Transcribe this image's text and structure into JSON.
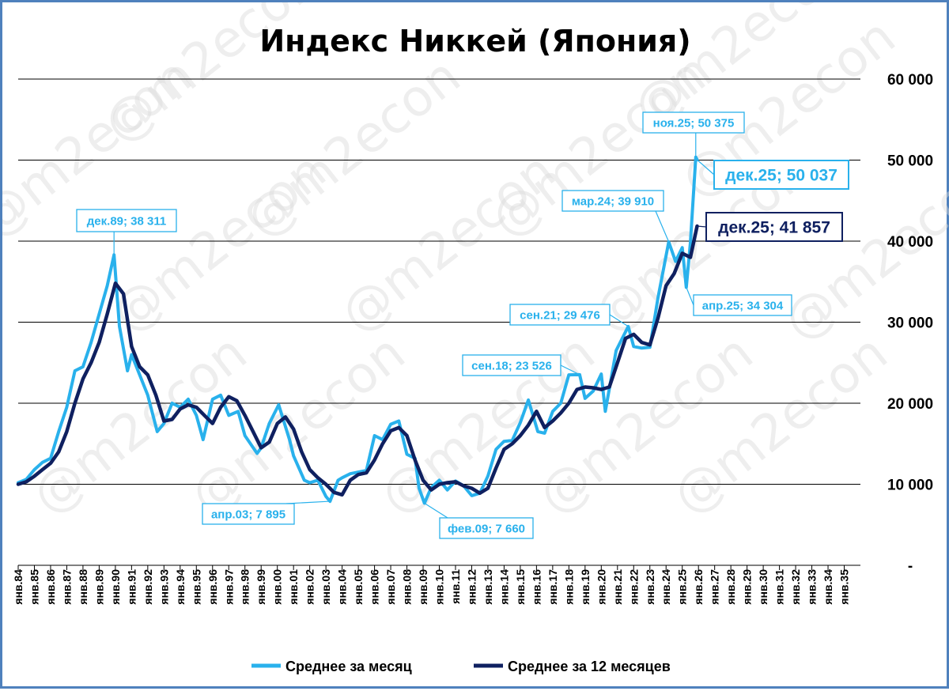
{
  "chart_data": {
    "type": "line",
    "title": "Индекс Никкей (Япония)",
    "watermark": "@m2econ",
    "colors": {
      "monthly": "#29b1ec",
      "avg12": "#0f2060",
      "grid": "#000000",
      "frame": "#4f81bd"
    },
    "ylim": [
      0,
      60000
    ],
    "y_ticks": [
      {
        "value": 0,
        "label": "-"
      },
      {
        "value": 10000,
        "label": "10 000"
      },
      {
        "value": 20000,
        "label": "20 000"
      },
      {
        "value": 30000,
        "label": "30 000"
      },
      {
        "value": 40000,
        "label": "40 000"
      },
      {
        "value": 50000,
        "label": "50 000"
      },
      {
        "value": 60000,
        "label": "60 000"
      }
    ],
    "grid": "horizontal",
    "x_tick_labels": [
      "янв.84",
      "янв.85",
      "янв.86",
      "янв.87",
      "янв.88",
      "янв.89",
      "янв.90",
      "янв.91",
      "янв.92",
      "янв.93",
      "янв.94",
      "янв.95",
      "янв.96",
      "янв.97",
      "янв.98",
      "янв.99",
      "янв.00",
      "янв.01",
      "янв.02",
      "янв.03",
      "янв.04",
      "янв.05",
      "янв.06",
      "янв.07",
      "янв.08",
      "янв.09",
      "янв.10",
      "янв.11",
      "янв.12",
      "янв.13",
      "янв.14",
      "янв.15",
      "янв.16",
      "янв.17",
      "янв.18",
      "янв.19",
      "янв.20",
      "янв.21",
      "янв.22",
      "янв.23",
      "янв.24",
      "янв.25",
      "янв.26",
      "янв.27",
      "янв.28",
      "янв.29",
      "янв.30",
      "янв.31",
      "янв.32",
      "янв.33",
      "янв.34",
      "янв.35"
    ],
    "x_range": [
      "янв.84",
      "дек.35"
    ],
    "legend_position": "bottom",
    "series": [
      {
        "name": "Среднее за месяц",
        "x": [
          "янв.84",
          "июл.84",
          "янв.85",
          "июл.85",
          "янв.86",
          "июл.86",
          "янв.87",
          "июл.87",
          "янв.88",
          "июл.88",
          "янв.89",
          "июл.89",
          "дек.89",
          "апр.90",
          "окт.90",
          "янв.91",
          "июл.91",
          "янв.92",
          "авг.92",
          "янв.93",
          "июл.93",
          "янв.94",
          "июл.94",
          "янв.95",
          "июн.95",
          "янв.96",
          "июл.96",
          "янв.97",
          "авг.97",
          "янв.98",
          "окт.98",
          "янв.99",
          "июл.99",
          "фев.00",
          "окт.00",
          "янв.01",
          "сен.01",
          "янв.02",
          "июл.02",
          "янв.03",
          "апр.03",
          "окт.03",
          "янв.04",
          "июл.04",
          "янв.05",
          "июл.05",
          "янв.06",
          "июл.06",
          "янв.07",
          "июл.07",
          "янв.08",
          "июл.08",
          "окт.08",
          "фев.09",
          "июл.09",
          "янв.10",
          "июл.10",
          "янв.11",
          "июл.11",
          "янв.12",
          "июл.12",
          "янв.13",
          "июл.13",
          "янв.14",
          "июл.14",
          "янв.15",
          "июл.15",
          "фев.16",
          "июл.16",
          "янв.17",
          "июл.17",
          "янв.18",
          "сен.18",
          "янв.19",
          "июл.19",
          "янв.20",
          "апр.20",
          "дек.20",
          "сен.21",
          "янв.22",
          "июл.22",
          "янв.23",
          "июл.23",
          "мар.24",
          "авг.24",
          "янв.25",
          "апр.25",
          "июл.25",
          "ноя.25",
          "дек.25"
        ],
        "values": [
          10200,
          10600,
          11800,
          12700,
          13200,
          16500,
          19500,
          24000,
          24500,
          27500,
          31000,
          34500,
          38311,
          29500,
          24000,
          26000,
          23500,
          21000,
          16500,
          17500,
          20000,
          19500,
          20500,
          18500,
          15500,
          20500,
          21000,
          18500,
          19000,
          16000,
          13800,
          14500,
          17500,
          19800,
          15500,
          13500,
          10500,
          10200,
          10500,
          8500,
          7895,
          10500,
          10800,
          11300,
          11500,
          11700,
          16000,
          15500,
          17400,
          17800,
          13700,
          13200,
          9500,
          7660,
          9600,
          10500,
          9300,
          10400,
          9800,
          8600,
          8900,
          11000,
          14300,
          15300,
          15400,
          17600,
          20400,
          16500,
          16300,
          19000,
          20000,
          23500,
          23526,
          20600,
          21500,
          23600,
          19000,
          26500,
          29476,
          27000,
          26800,
          26900,
          33000,
          39910,
          37500,
          39200,
          34304,
          39800,
          50375,
          50037
        ]
      },
      {
        "name": "Среднее за 12 месяцев",
        "x": [
          "янв.84",
          "июл.84",
          "янв.85",
          "июл.85",
          "янв.86",
          "июл.86",
          "янв.87",
          "июл.87",
          "янв.88",
          "июл.88",
          "янв.89",
          "июл.89",
          "янв.90",
          "июл.90",
          "янв.91",
          "июл.91",
          "янв.92",
          "июл.92",
          "янв.93",
          "июл.93",
          "янв.94",
          "июл.94",
          "янв.95",
          "июл.95",
          "янв.96",
          "июл.96",
          "янв.97",
          "июл.97",
          "янв.98",
          "июл.98",
          "янв.99",
          "июл.99",
          "янв.00",
          "июл.00",
          "янв.01",
          "июл.01",
          "янв.02",
          "июл.02",
          "янв.03",
          "июл.03",
          "янв.04",
          "июл.04",
          "янв.05",
          "июл.05",
          "янв.06",
          "июл.06",
          "янв.07",
          "июл.07",
          "янв.08",
          "июл.08",
          "янв.09",
          "июл.09",
          "янв.10",
          "июл.10",
          "янв.11",
          "июл.11",
          "янв.12",
          "июл.12",
          "янв.13",
          "июл.13",
          "янв.14",
          "июл.14",
          "янв.15",
          "июл.15",
          "янв.16",
          "июл.16",
          "янв.17",
          "июл.17",
          "янв.18",
          "июл.18",
          "янв.19",
          "июл.19",
          "янв.20",
          "июл.20",
          "янв.21",
          "июл.21",
          "янв.22",
          "июл.22",
          "янв.23",
          "июл.23",
          "янв.24",
          "июл.24",
          "янв.25",
          "июл.25",
          "дек.25"
        ],
        "values": [
          10000,
          10300,
          11000,
          11800,
          12600,
          14000,
          16500,
          20000,
          23000,
          25000,
          27500,
          31000,
          34800,
          33500,
          27000,
          24500,
          23500,
          21000,
          17800,
          18000,
          19300,
          19800,
          19500,
          18500,
          17500,
          19500,
          20800,
          20300,
          18500,
          16500,
          14500,
          15200,
          17500,
          18300,
          16800,
          14000,
          11800,
          10800,
          10000,
          9000,
          8700,
          10500,
          11200,
          11400,
          13000,
          15000,
          16600,
          17000,
          16000,
          13000,
          10500,
          9300,
          10000,
          10200,
          10300,
          9800,
          9500,
          8900,
          9500,
          12000,
          14300,
          15000,
          16000,
          17300,
          19000,
          17000,
          17800,
          18800,
          20000,
          21700,
          22000,
          21900,
          21700,
          22000,
          25000,
          28000,
          28500,
          27500,
          27200,
          30500,
          34500,
          36000,
          38500,
          38000,
          41857
        ]
      }
    ],
    "annotations": [
      {
        "x": "дек.89",
        "value": 38311,
        "text": "дек.89;  38 311",
        "series": "Среднее за месяц"
      },
      {
        "x": "апр.03",
        "value": 7895,
        "text": "апр.03;  7 895",
        "series": "Среднее за месяц"
      },
      {
        "x": "фев.09",
        "value": 7660,
        "text": "фев.09;  7 660",
        "series": "Среднее за месяц"
      },
      {
        "x": "сен.18",
        "value": 23526,
        "text": "сен.18;  23 526",
        "series": "Среднее за месяц"
      },
      {
        "x": "сен.21",
        "value": 29476,
        "text": "сен.21;  29 476",
        "series": "Среднее за месяц"
      },
      {
        "x": "мар.24",
        "value": 39910,
        "text": "мар.24;  39 910",
        "series": "Среднее за месяц"
      },
      {
        "x": "апр.25",
        "value": 34304,
        "text": "апр.25;  34 304",
        "series": "Среднее за месяц"
      },
      {
        "x": "ноя.25",
        "value": 50375,
        "text": "ноя.25;  50 375",
        "series": "Среднее за месяц"
      },
      {
        "x": "дек.25",
        "value": 50037,
        "text": "дек.25;  50 037",
        "series": "Среднее за месяц"
      },
      {
        "x": "дек.25",
        "value": 41857,
        "text": "дек.25;  41 857",
        "series": "Среднее за 12 месяцев"
      }
    ]
  }
}
